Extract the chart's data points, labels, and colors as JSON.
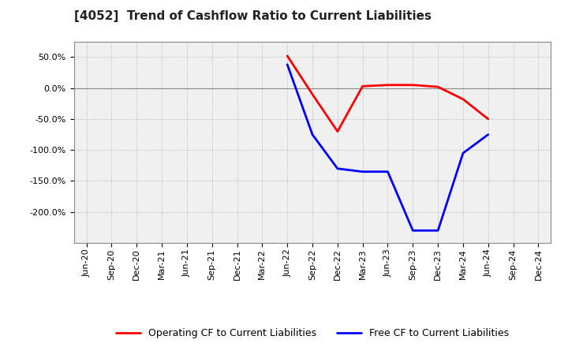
{
  "title": "[4052]  Trend of Cashflow Ratio to Current Liabilities",
  "x_labels": [
    "Jun-20",
    "Sep-20",
    "Dec-20",
    "Mar-21",
    "Jun-21",
    "Sep-21",
    "Dec-21",
    "Mar-22",
    "Jun-22",
    "Sep-22",
    "Dec-22",
    "Mar-23",
    "Jun-23",
    "Sep-23",
    "Dec-23",
    "Mar-24",
    "Jun-24",
    "Sep-24",
    "Dec-24"
  ],
  "operating_cf_x": [
    "Jun-22",
    "Sep-22",
    "Dec-22",
    "Mar-23",
    "Jun-23",
    "Sep-23",
    "Dec-23",
    "Mar-24",
    "Jun-24"
  ],
  "operating_cf_y": [
    52.0,
    -10.0,
    -70.0,
    3.0,
    5.0,
    5.0,
    2.0,
    -18.0,
    -50.0
  ],
  "free_cf_x": [
    "Jun-22",
    "Sep-22",
    "Dec-22",
    "Mar-23",
    "Jun-23",
    "Sep-23",
    "Dec-23",
    "Mar-24",
    "Jun-24"
  ],
  "free_cf_y": [
    38.0,
    -75.0,
    -130.0,
    -135.0,
    -135.0,
    -230.0,
    -230.0,
    -105.0,
    -75.0
  ],
  "ylim": [
    -250,
    75
  ],
  "yticks": [
    50.0,
    0.0,
    -50.0,
    -100.0,
    -150.0,
    -200.0
  ],
  "background_color": "#ffffff",
  "plot_bg_color": "#f0f0f0",
  "grid_color": "#aaaaaa",
  "operating_color": "#ff0000",
  "free_color": "#0000ff",
  "line_width": 2.0,
  "title_fontsize": 11,
  "tick_fontsize": 8,
  "legend_fontsize": 9
}
